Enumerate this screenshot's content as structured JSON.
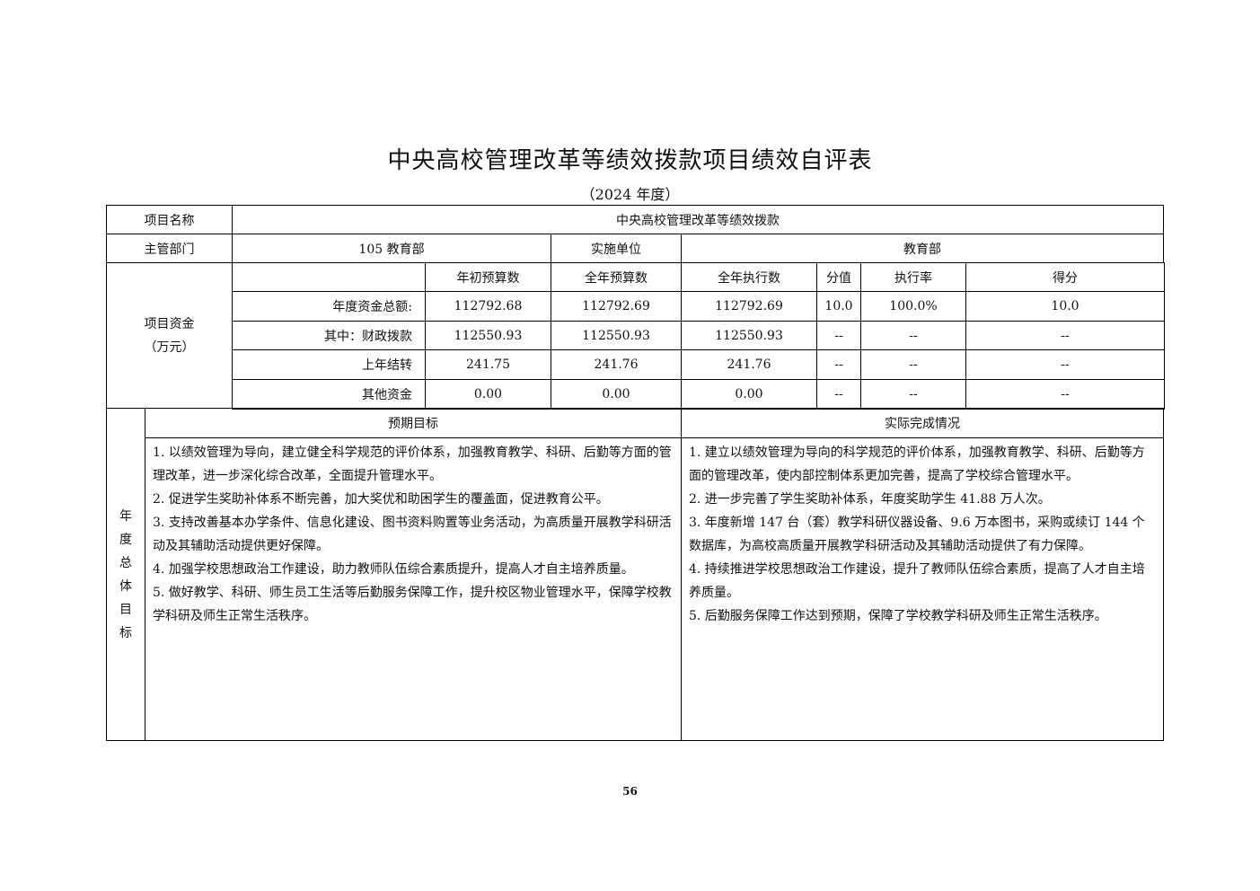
{
  "title": "中央高校管理改革等绩效拨款项目绩效自评表",
  "subtitle": "（2024 年度）",
  "project_name_label": "项目名称",
  "project_name": "中央高校管理改革等绩效拨款",
  "dept_label": "主管部门",
  "dept": "105 教育部",
  "impl_label": "实施单位",
  "impl": "教育部",
  "funds_label": "项目资金",
  "funds_unit": "（万元）",
  "funds_headers": [
    "年初预算数",
    "全年预算数",
    "全年执行数",
    "分值",
    "执行率",
    "得分"
  ],
  "funds_rows": [
    {
      "label": "年度资金总额:",
      "cells": [
        "112792.68",
        "112792.69",
        "112792.69",
        "10.0",
        "100.0%",
        "10.0"
      ]
    },
    {
      "label": "其中：财政拨款",
      "cells": [
        "112550.93",
        "112550.93",
        "112550.93",
        "--",
        "--",
        "--"
      ]
    },
    {
      "label": "上年结转",
      "cells": [
        "241.75",
        "241.76",
        "241.76",
        "--",
        "--",
        "--"
      ]
    },
    {
      "label": "其他资金",
      "cells": [
        "0.00",
        "0.00",
        "0.00",
        "--",
        "--",
        "--"
      ]
    }
  ],
  "goal_label_chars": [
    "年",
    "度",
    "总",
    "体",
    "目",
    "标"
  ],
  "expected_header": "预期目标",
  "actual_header": "实际完成情况",
  "expected": [
    "1. 以绩效管理为导向，建立健全科学规范的评价体系，加强教育教学、科研、后勤等方面的管理改革，进一步深化综合改革，全面提升管理水平。",
    "2. 促进学生奖助补体系不断完善，加大奖优和助困学生的覆盖面，促进教育公平。",
    "3. 支持改善基本办学条件、信息化建设、图书资料购置等业务活动，为高质量开展教学科研活动及其辅助活动提供更好保障。",
    "4. 加强学校思想政治工作建设，助力教师队伍综合素质提升，提高人才自主培养质量。",
    "5. 做好教学、科研、师生员工生活等后勤服务保障工作，提升校区物业管理水平，保障学校教学科研及师生正常生活秩序。"
  ],
  "actual": [
    "1. 建立以绩效管理为导向的科学规范的评价体系，加强教育教学、科研、后勤等方面的管理改革，使内部控制体系更加完善，提高了学校综合管理水平。",
    "2. 进一步完善了学生奖助补体系，年度奖助学生 41.88 万人次。",
    "3. 年度新增 147 台（套）教学科研仪器设备、9.6 万本图书，采购或续订 144 个数据库，为高校高质量开展教学科研活动及其辅助活动提供了有力保障。",
    "4. 持续推进学校思想政治工作建设，提升了教师队伍综合素质，提高了人才自主培养质量。",
    "5. 后勤服务保障工作达到预期，保障了学校教学科研及师生正常生活秩序。"
  ],
  "page_number": "56"
}
